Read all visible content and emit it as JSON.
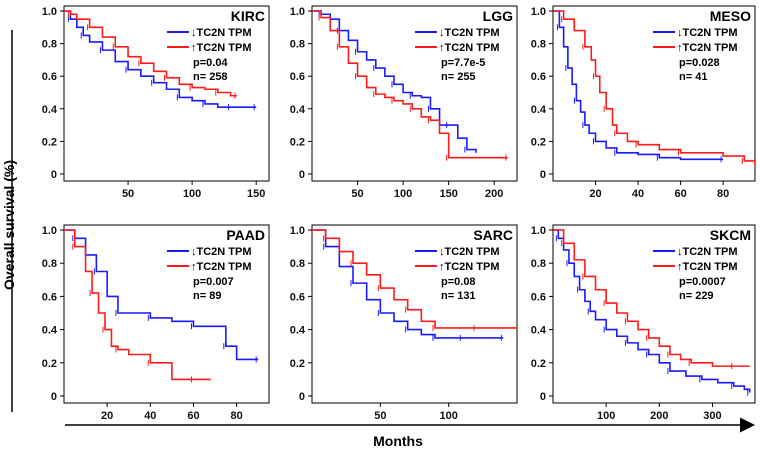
{
  "figure": {
    "ylabel": "Overall survival (%)",
    "xlabel": "Months"
  },
  "chart_data": [
    {
      "type": "line",
      "title": "KIRC",
      "xlim": [
        0,
        160
      ],
      "ylim": [
        0,
        1
      ],
      "xticks": [
        50,
        100,
        150
      ],
      "yticks": [
        0,
        0.2,
        0.4,
        0.6,
        0.8,
        1.0
      ],
      "ytick_labels": [
        "0",
        "0.2",
        "0.4",
        "0.6",
        "0.8",
        "1.0"
      ],
      "p_text": "p=0.04",
      "n_text": "n= 258",
      "series": [
        {
          "name": "↓TC2N TPM",
          "color": "#1a1aff",
          "x": [
            0,
            5,
            10,
            15,
            20,
            30,
            40,
            50,
            60,
            70,
            80,
            90,
            100,
            110,
            120,
            130,
            140,
            150
          ],
          "values": [
            1.0,
            0.95,
            0.9,
            0.85,
            0.81,
            0.76,
            0.69,
            0.64,
            0.6,
            0.56,
            0.52,
            0.47,
            0.45,
            0.43,
            0.41,
            0.41,
            0.41,
            0.41
          ]
        },
        {
          "name": "↑TC2N TPM",
          "color": "#ff1a1a",
          "x": [
            0,
            5,
            10,
            20,
            30,
            40,
            50,
            60,
            70,
            80,
            90,
            100,
            110,
            120,
            130,
            135
          ],
          "values": [
            1.0,
            0.98,
            0.95,
            0.9,
            0.84,
            0.78,
            0.72,
            0.68,
            0.63,
            0.59,
            0.55,
            0.53,
            0.52,
            0.5,
            0.48,
            0.48
          ]
        }
      ]
    },
    {
      "type": "line",
      "title": "LGG",
      "xlim": [
        0,
        225
      ],
      "ylim": [
        0,
        1
      ],
      "xticks": [
        50,
        100,
        150,
        200
      ],
      "yticks": [
        0,
        0.2,
        0.4,
        0.6,
        0.8,
        1.0
      ],
      "ytick_labels": [
        "0",
        "0.2",
        "0.4",
        "0.6",
        "0.8",
        "1.0"
      ],
      "p_text": "p=7.7e-5",
      "n_text": "n= 255",
      "series": [
        {
          "name": "↓TC2N TPM",
          "color": "#1a1aff",
          "x": [
            0,
            10,
            20,
            30,
            40,
            50,
            60,
            70,
            80,
            90,
            100,
            110,
            120,
            130,
            140,
            150,
            160,
            170,
            180
          ],
          "values": [
            1.0,
            0.98,
            0.95,
            0.88,
            0.82,
            0.75,
            0.7,
            0.65,
            0.6,
            0.55,
            0.5,
            0.48,
            0.47,
            0.4,
            0.3,
            0.3,
            0.22,
            0.15,
            0.13
          ]
        },
        {
          "name": "↑TC2N TPM",
          "color": "#ff1a1a",
          "x": [
            0,
            10,
            20,
            30,
            40,
            50,
            60,
            70,
            80,
            90,
            100,
            110,
            120,
            130,
            140,
            150,
            180,
            215
          ],
          "values": [
            1.0,
            0.96,
            0.88,
            0.78,
            0.68,
            0.6,
            0.53,
            0.49,
            0.47,
            0.45,
            0.43,
            0.4,
            0.35,
            0.33,
            0.25,
            0.1,
            0.1,
            0.1
          ]
        }
      ]
    },
    {
      "type": "line",
      "title": "MESO",
      "xlim": [
        0,
        95
      ],
      "ylim": [
        0,
        1
      ],
      "xticks": [
        20,
        40,
        60,
        80
      ],
      "yticks": [
        0,
        0.2,
        0.4,
        0.6,
        0.8,
        1.0
      ],
      "ytick_labels": [
        "0",
        "0.2",
        "0.4",
        "0.6",
        "0.8",
        "1.0"
      ],
      "p_text": "p=0.028",
      "n_text": "n= 41",
      "series": [
        {
          "name": "↓TC2N TPM",
          "color": "#1a1aff",
          "x": [
            0,
            3,
            5,
            7,
            9,
            11,
            13,
            15,
            17,
            20,
            25,
            30,
            40,
            50,
            60,
            80
          ],
          "values": [
            1.0,
            0.9,
            0.78,
            0.65,
            0.55,
            0.45,
            0.38,
            0.3,
            0.25,
            0.2,
            0.16,
            0.13,
            0.12,
            0.1,
            0.09,
            0.09
          ]
        },
        {
          "name": "↑TC2N TPM",
          "color": "#ff1a1a",
          "x": [
            0,
            5,
            10,
            15,
            18,
            20,
            22,
            25,
            28,
            30,
            35,
            40,
            50,
            60,
            80,
            90,
            95
          ],
          "values": [
            1.0,
            0.95,
            0.88,
            0.78,
            0.7,
            0.6,
            0.5,
            0.4,
            0.3,
            0.25,
            0.2,
            0.18,
            0.15,
            0.13,
            0.11,
            0.08,
            0.05
          ]
        }
      ]
    },
    {
      "type": "line",
      "title": "PAAD",
      "xlim": [
        0,
        95
      ],
      "ylim": [
        0,
        1
      ],
      "xticks": [
        20,
        40,
        60,
        80
      ],
      "yticks": [
        0,
        0.2,
        0.4,
        0.6,
        0.8,
        1.0
      ],
      "ytick_labels": [
        "0",
        "0.2",
        "0.4",
        "0.6",
        "0.8",
        "1.0"
      ],
      "p_text": "p=0.007",
      "n_text": "n= 89",
      "series": [
        {
          "name": "↓TC2N TPM",
          "color": "#1a1aff",
          "x": [
            0,
            5,
            10,
            15,
            20,
            25,
            30,
            40,
            50,
            60,
            70,
            75,
            80,
            90
          ],
          "values": [
            1.0,
            0.95,
            0.85,
            0.75,
            0.6,
            0.5,
            0.5,
            0.47,
            0.45,
            0.42,
            0.42,
            0.3,
            0.22,
            0.22
          ]
        },
        {
          "name": "↑TC2N TPM",
          "color": "#ff1a1a",
          "x": [
            0,
            5,
            10,
            13,
            16,
            19,
            22,
            25,
            30,
            40,
            50,
            60,
            68
          ],
          "values": [
            1.0,
            0.9,
            0.75,
            0.62,
            0.5,
            0.4,
            0.3,
            0.28,
            0.25,
            0.2,
            0.1,
            0.1,
            0.1
          ]
        }
      ]
    },
    {
      "type": "line",
      "title": "SARC",
      "xlim": [
        0,
        150
      ],
      "ylim": [
        0,
        1
      ],
      "xticks": [
        50,
        100
      ],
      "yticks": [
        0,
        0.2,
        0.4,
        0.6,
        0.8,
        1.0
      ],
      "ytick_labels": [
        "0",
        "0.2",
        "0.4",
        "0.6",
        "0.8",
        "1.0"
      ],
      "p_text": "p=0.08",
      "n_text": "n= 131",
      "series": [
        {
          "name": "↓TC2N TPM",
          "color": "#1a1aff",
          "x": [
            0,
            10,
            20,
            30,
            40,
            50,
            60,
            70,
            80,
            90,
            100,
            110,
            120,
            140
          ],
          "values": [
            1.0,
            0.9,
            0.78,
            0.68,
            0.58,
            0.5,
            0.45,
            0.4,
            0.37,
            0.35,
            0.35,
            0.35,
            0.35,
            0.35
          ]
        },
        {
          "name": "↑TC2N TPM",
          "color": "#ff1a1a",
          "x": [
            0,
            10,
            20,
            30,
            40,
            50,
            60,
            70,
            80,
            90,
            100,
            120,
            150
          ],
          "values": [
            1.0,
            0.95,
            0.87,
            0.8,
            0.73,
            0.65,
            0.58,
            0.52,
            0.45,
            0.41,
            0.41,
            0.41,
            0.41
          ]
        }
      ]
    },
    {
      "type": "line",
      "title": "SKCM",
      "xlim": [
        0,
        380
      ],
      "ylim": [
        0,
        1
      ],
      "xticks": [
        100,
        200,
        300
      ],
      "yticks": [
        0,
        0.2,
        0.4,
        0.6,
        0.8,
        1.0
      ],
      "ytick_labels": [
        "0",
        "0.2",
        "0.4",
        "0.6",
        "0.8",
        "1.0"
      ],
      "p_text": "p=0.0007",
      "n_text": "n= 229",
      "series": [
        {
          "name": "↓TC2N TPM",
          "color": "#1a1aff",
          "x": [
            0,
            10,
            20,
            30,
            40,
            50,
            60,
            70,
            80,
            100,
            120,
            140,
            160,
            180,
            200,
            220,
            250,
            280,
            310,
            340,
            360,
            370
          ],
          "values": [
            1.0,
            0.95,
            0.88,
            0.8,
            0.72,
            0.64,
            0.57,
            0.51,
            0.46,
            0.4,
            0.36,
            0.32,
            0.28,
            0.25,
            0.2,
            0.15,
            0.12,
            0.1,
            0.08,
            0.06,
            0.04,
            0.02
          ]
        },
        {
          "name": "↑TC2N TPM",
          "color": "#ff1a1a",
          "x": [
            0,
            20,
            40,
            60,
            80,
            100,
            120,
            140,
            160,
            180,
            200,
            220,
            240,
            260,
            300,
            340,
            370
          ],
          "values": [
            1.0,
            0.92,
            0.82,
            0.72,
            0.64,
            0.56,
            0.5,
            0.45,
            0.4,
            0.35,
            0.3,
            0.25,
            0.22,
            0.2,
            0.18,
            0.18,
            0.18
          ]
        }
      ]
    }
  ]
}
